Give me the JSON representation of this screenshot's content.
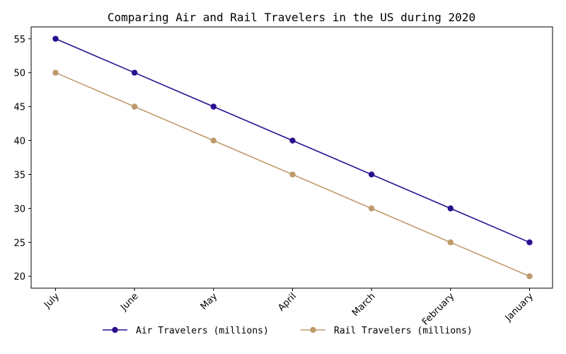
{
  "chart_data": {
    "type": "line",
    "title": "Comparing Air and Rail Travelers in the US during 2020",
    "xlabel": "",
    "ylabel": "",
    "categories": [
      "July",
      "June",
      "May",
      "April",
      "March",
      "February",
      "January"
    ],
    "series": [
      {
        "name": "Air Travelers (millions)",
        "values": [
          55,
          50,
          45,
          40,
          35,
          30,
          25
        ],
        "color": "#2a0f8f"
      },
      {
        "name": "Rail Travelers (millions)",
        "values": [
          50,
          45,
          40,
          35,
          30,
          25,
          20
        ],
        "color": "#bf9a6b"
      }
    ],
    "ylim": [
      18.25,
      56.75
    ],
    "yticks": [
      20,
      25,
      30,
      35,
      40,
      45,
      50,
      55
    ],
    "grid": false,
    "legend_position": "bottom-center",
    "x_tick_rotation": "45 degrees"
  }
}
